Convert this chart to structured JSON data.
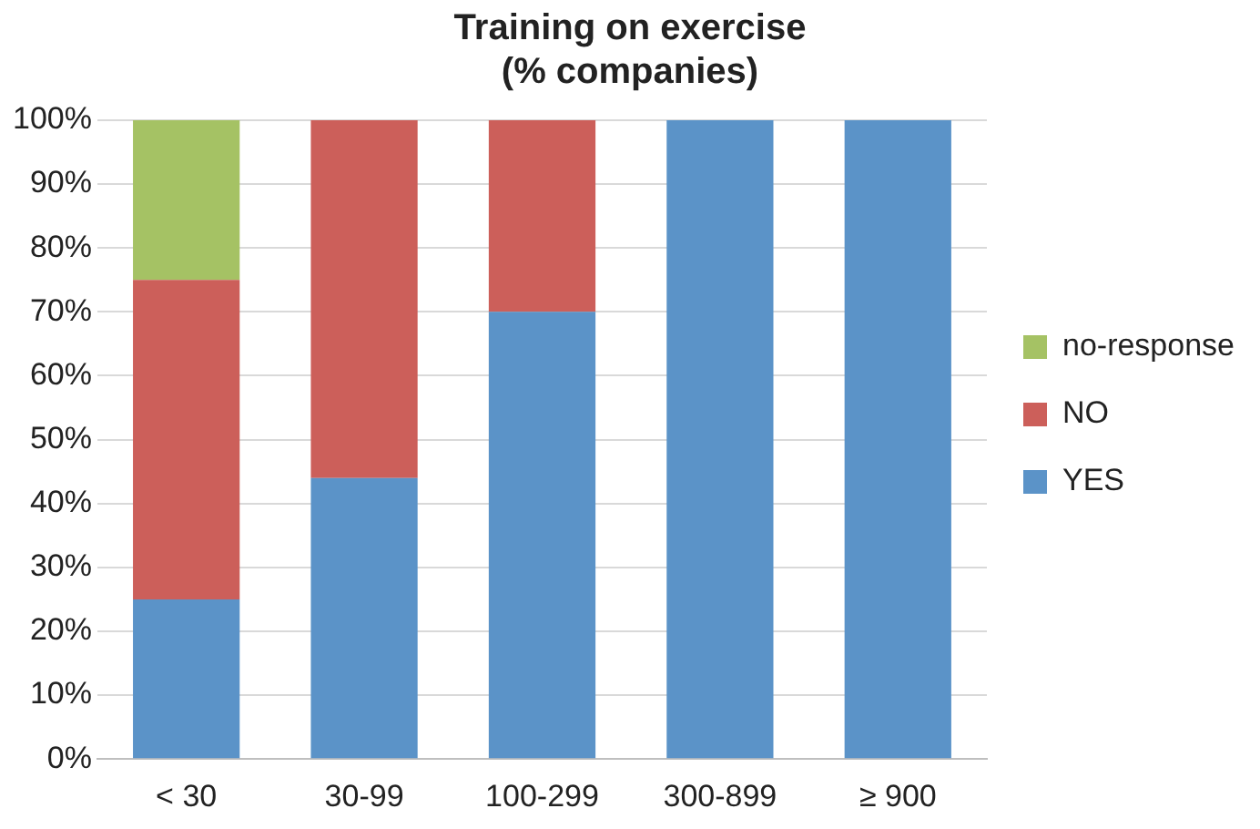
{
  "chart_data": {
    "type": "bar",
    "title": "Training on exercise\n(% companies)",
    "categories": [
      "< 30",
      "30-99",
      "100-299",
      "300-899",
      "≥ 900"
    ],
    "stacked": true,
    "series": [
      {
        "name": "YES",
        "color": "#5b93c8",
        "values": [
          25,
          44,
          70,
          100,
          100
        ]
      },
      {
        "name": "NO",
        "color": "#cc5f5a",
        "values": [
          50,
          56,
          30,
          0,
          0
        ]
      },
      {
        "name": "no-response",
        "color": "#a5c264",
        "values": [
          25,
          0,
          0,
          0,
          0
        ]
      }
    ],
    "ylim": [
      0,
      100
    ],
    "yticks": [
      {
        "value": 0,
        "label": "0%"
      },
      {
        "value": 10,
        "label": "10%"
      },
      {
        "value": 20,
        "label": "20%"
      },
      {
        "value": 30,
        "label": "30%"
      },
      {
        "value": 40,
        "label": "40%"
      },
      {
        "value": 50,
        "label": "50%"
      },
      {
        "value": 60,
        "label": "60%"
      },
      {
        "value": 70,
        "label": "70%"
      },
      {
        "value": 80,
        "label": "80%"
      },
      {
        "value": 90,
        "label": "90%"
      },
      {
        "value": 100,
        "label": "100%"
      }
    ],
    "grid": "y",
    "legend": "right"
  }
}
